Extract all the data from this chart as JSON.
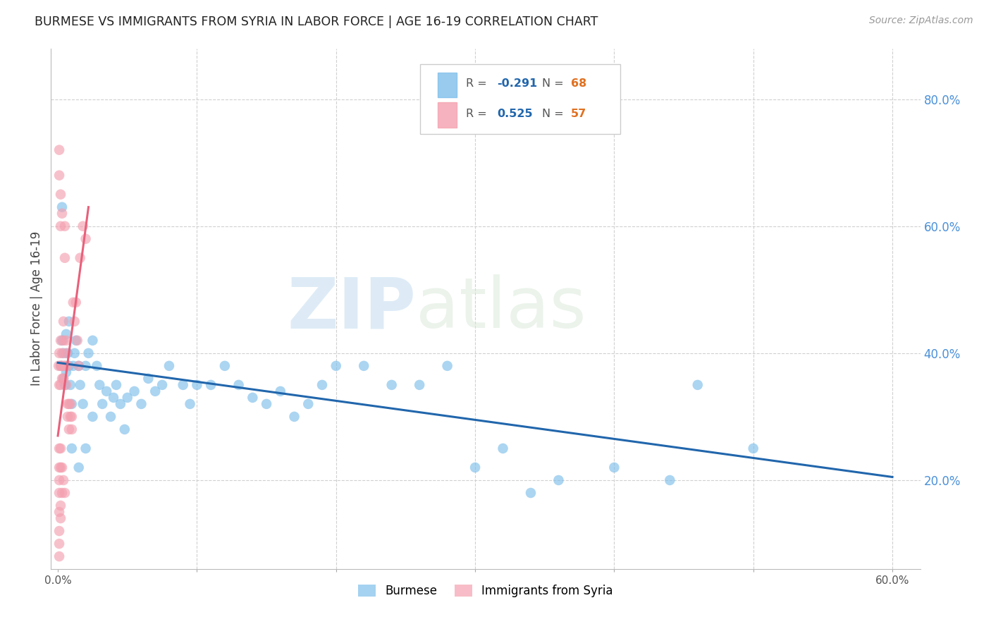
{
  "title": "BURMESE VS IMMIGRANTS FROM SYRIA IN LABOR FORCE | AGE 16-19 CORRELATION CHART",
  "source": "Source: ZipAtlas.com",
  "ylabel": "In Labor Force | Age 16-19",
  "xlim": [
    -0.005,
    0.62
  ],
  "ylim": [
    0.06,
    0.88
  ],
  "xticks": [
    0.0,
    0.1,
    0.2,
    0.3,
    0.4,
    0.5,
    0.6
  ],
  "yticks_right": [
    0.2,
    0.4,
    0.6,
    0.8
  ],
  "ytick_labels_right": [
    "20.0%",
    "40.0%",
    "60.0%",
    "80.0%"
  ],
  "blue_color": "#7fbfea",
  "pink_color": "#f4a0b0",
  "blue_line_color": "#2166ac",
  "pink_line_color": "#e8607a",
  "grid_color": "#d0d0d0",
  "watermark_zip": "ZIP",
  "watermark_atlas": "atlas",
  "blue_line_x": [
    0.0,
    0.6
  ],
  "blue_line_y": [
    0.385,
    0.205
  ],
  "pink_line_x": [
    0.0,
    0.022
  ],
  "pink_line_y": [
    0.27,
    0.63
  ],
  "burmese_x": [
    0.002,
    0.003,
    0.004,
    0.004,
    0.005,
    0.005,
    0.006,
    0.007,
    0.008,
    0.009,
    0.01,
    0.011,
    0.012,
    0.013,
    0.015,
    0.016,
    0.018,
    0.02,
    0.022,
    0.025,
    0.028,
    0.03,
    0.032,
    0.035,
    0.038,
    0.04,
    0.042,
    0.045,
    0.048,
    0.05,
    0.055,
    0.06,
    0.065,
    0.07,
    0.075,
    0.08,
    0.09,
    0.095,
    0.1,
    0.11,
    0.12,
    0.13,
    0.14,
    0.15,
    0.16,
    0.17,
    0.18,
    0.19,
    0.2,
    0.22,
    0.24,
    0.26,
    0.28,
    0.3,
    0.32,
    0.34,
    0.36,
    0.4,
    0.44,
    0.46,
    0.003,
    0.006,
    0.008,
    0.01,
    0.015,
    0.02,
    0.025,
    0.5
  ],
  "burmese_y": [
    0.38,
    0.42,
    0.4,
    0.36,
    0.38,
    0.35,
    0.37,
    0.4,
    0.38,
    0.35,
    0.32,
    0.38,
    0.4,
    0.42,
    0.38,
    0.35,
    0.32,
    0.38,
    0.4,
    0.42,
    0.38,
    0.35,
    0.32,
    0.34,
    0.3,
    0.33,
    0.35,
    0.32,
    0.28,
    0.33,
    0.34,
    0.32,
    0.36,
    0.34,
    0.35,
    0.38,
    0.35,
    0.32,
    0.35,
    0.35,
    0.38,
    0.35,
    0.33,
    0.32,
    0.34,
    0.3,
    0.32,
    0.35,
    0.38,
    0.38,
    0.35,
    0.35,
    0.38,
    0.22,
    0.25,
    0.18,
    0.2,
    0.22,
    0.2,
    0.35,
    0.63,
    0.43,
    0.45,
    0.25,
    0.22,
    0.25,
    0.3,
    0.25
  ],
  "syria_x": [
    0.0005,
    0.001,
    0.001,
    0.002,
    0.002,
    0.002,
    0.003,
    0.003,
    0.003,
    0.003,
    0.004,
    0.004,
    0.004,
    0.005,
    0.005,
    0.005,
    0.006,
    0.006,
    0.006,
    0.007,
    0.007,
    0.007,
    0.008,
    0.008,
    0.009,
    0.009,
    0.01,
    0.01,
    0.011,
    0.012,
    0.013,
    0.014,
    0.015,
    0.016,
    0.018,
    0.02,
    0.001,
    0.002,
    0.003,
    0.003,
    0.004,
    0.005,
    0.001,
    0.001,
    0.002,
    0.002,
    0.003,
    0.001,
    0.001,
    0.002,
    0.001,
    0.001,
    0.001,
    0.002,
    0.002,
    0.001,
    0.001
  ],
  "syria_y": [
    0.38,
    0.35,
    0.4,
    0.38,
    0.35,
    0.42,
    0.38,
    0.4,
    0.36,
    0.38,
    0.45,
    0.42,
    0.36,
    0.55,
    0.6,
    0.38,
    0.35,
    0.4,
    0.42,
    0.38,
    0.32,
    0.3,
    0.32,
    0.28,
    0.3,
    0.32,
    0.28,
    0.3,
    0.48,
    0.45,
    0.48,
    0.42,
    0.38,
    0.55,
    0.6,
    0.58,
    0.2,
    0.22,
    0.18,
    0.22,
    0.2,
    0.18,
    0.72,
    0.68,
    0.65,
    0.6,
    0.62,
    0.25,
    0.22,
    0.25,
    0.15,
    0.18,
    0.12,
    0.14,
    0.16,
    0.08,
    0.1
  ]
}
